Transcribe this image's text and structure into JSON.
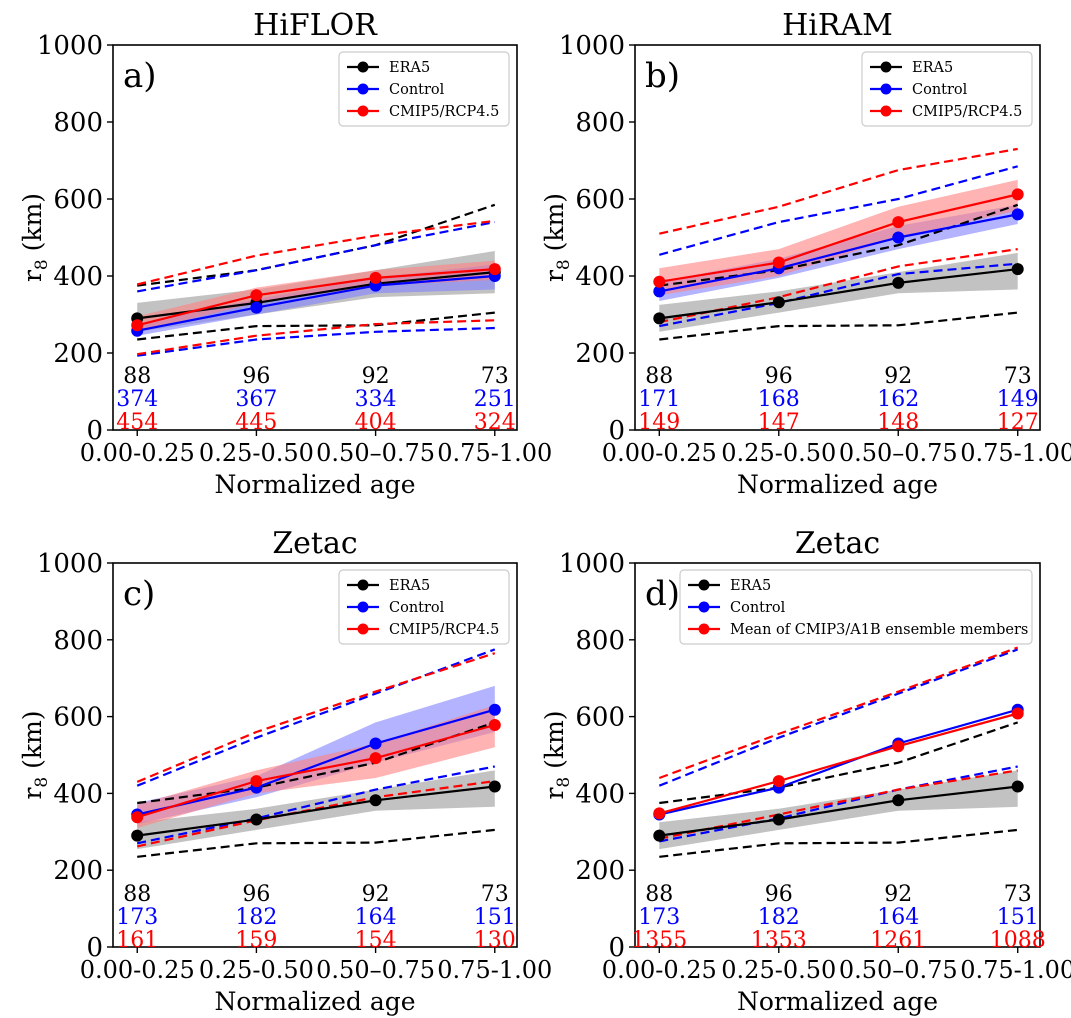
{
  "figure": {
    "panels": [
      "a",
      "b",
      "c",
      "d"
    ]
  },
  "colors": {
    "era5": "#000000",
    "control": "#0000ff",
    "cmip": "#ff0000",
    "era5_band": "#9a9a9a",
    "control_band": "#8080ff",
    "cmip_band": "#ff8080"
  },
  "chart_data": [
    {
      "type": "line",
      "panel_label": "a)",
      "title": "HiFLOR",
      "xlabel": "Normalized age",
      "ylabel_main": "r",
      "ylabel_sub": "8",
      "ylabel_unit": " (km)",
      "categories": [
        "0.00-0.25",
        "0.25-0.50",
        "0.50–0.75",
        "0.75-1.00"
      ],
      "ylim": [
        0,
        1000
      ],
      "yticks": [
        "0",
        "200",
        "400",
        "600",
        "800",
        "1000"
      ],
      "legend_position": "upper-right",
      "series": [
        {
          "name": "ERA5",
          "color_key": "era5",
          "mean": [
            290,
            330,
            380,
            410
          ],
          "band_low": [
            255,
            300,
            345,
            355
          ],
          "band_high": [
            330,
            365,
            415,
            465
          ],
          "dash_high": [
            375,
            415,
            480,
            585
          ],
          "dash_low": [
            235,
            270,
            272,
            305
          ]
        },
        {
          "name": "Control",
          "color_key": "control",
          "mean": [
            258,
            318,
            375,
            400
          ],
          "band_low": [
            245,
            300,
            355,
            365
          ],
          "band_high": [
            275,
            340,
            395,
            430
          ],
          "dash_high": [
            360,
            415,
            480,
            540
          ],
          "dash_low": [
            193,
            235,
            255,
            265
          ]
        },
        {
          "name": "CMIP5/RCP4.5",
          "color_key": "cmip",
          "mean": [
            272,
            350,
            395,
            418
          ],
          "band_low": [
            255,
            330,
            375,
            390
          ],
          "band_high": [
            295,
            370,
            415,
            440
          ],
          "dash_high": [
            378,
            453,
            505,
            543
          ],
          "dash_low": [
            197,
            245,
            275,
            285
          ]
        }
      ],
      "counts": [
        {
          "color_key": "era5",
          "values": [
            "88",
            "96",
            "92",
            "73"
          ]
        },
        {
          "color_key": "control",
          "values": [
            "374",
            "367",
            "334",
            "251"
          ]
        },
        {
          "color_key": "cmip",
          "values": [
            "454",
            "445",
            "404",
            "324"
          ]
        }
      ]
    },
    {
      "type": "line",
      "panel_label": "b)",
      "title": "HiRAM",
      "xlabel": "Normalized age",
      "ylabel_main": "r",
      "ylabel_sub": "8",
      "ylabel_unit": " (km)",
      "categories": [
        "0.00-0.25",
        "0.25-0.50",
        "0.50–0.75",
        "0.75-1.00"
      ],
      "ylim": [
        0,
        1000
      ],
      "yticks": [
        "0",
        "200",
        "400",
        "600",
        "800",
        "1000"
      ],
      "legend_position": "upper-right",
      "series": [
        {
          "name": "ERA5",
          "color_key": "era5",
          "mean": [
            290,
            332,
            382,
            418
          ],
          "band_low": [
            255,
            305,
            355,
            365
          ],
          "band_high": [
            325,
            360,
            410,
            460
          ],
          "dash_high": [
            375,
            415,
            480,
            585
          ],
          "dash_low": [
            235,
            270,
            272,
            305
          ]
        },
        {
          "name": "Control",
          "color_key": "control",
          "mean": [
            360,
            420,
            500,
            560
          ],
          "band_low": [
            335,
            395,
            470,
            535
          ],
          "band_high": [
            385,
            445,
            530,
            585
          ],
          "dash_high": [
            455,
            540,
            600,
            685
          ],
          "dash_low": [
            270,
            330,
            405,
            432
          ]
        },
        {
          "name": "CMIP5/RCP4.5",
          "color_key": "cmip",
          "mean": [
            385,
            435,
            540,
            612
          ],
          "band_low": [
            350,
            400,
            500,
            570
          ],
          "band_high": [
            420,
            470,
            580,
            650
          ],
          "dash_high": [
            510,
            580,
            675,
            730
          ],
          "dash_low": [
            280,
            345,
            425,
            470
          ]
        }
      ],
      "counts": [
        {
          "color_key": "era5",
          "values": [
            "88",
            "96",
            "92",
            "73"
          ]
        },
        {
          "color_key": "control",
          "values": [
            "171",
            "168",
            "162",
            "149"
          ]
        },
        {
          "color_key": "cmip",
          "values": [
            "149",
            "147",
            "148",
            "127"
          ]
        }
      ]
    },
    {
      "type": "line",
      "panel_label": "c)",
      "title": "Zetac",
      "xlabel": "Normalized age",
      "ylabel_main": "r",
      "ylabel_sub": "8",
      "ylabel_unit": " (km)",
      "categories": [
        "0.00-0.25",
        "0.25-0.50",
        "0.50–0.75",
        "0.75-1.00"
      ],
      "ylim": [
        0,
        1000
      ],
      "yticks": [
        "0",
        "200",
        "400",
        "600",
        "800",
        "1000"
      ],
      "legend_position": "upper-right",
      "series": [
        {
          "name": "ERA5",
          "color_key": "era5",
          "mean": [
            290,
            332,
            382,
            418
          ],
          "band_low": [
            255,
            305,
            355,
            365
          ],
          "band_high": [
            325,
            360,
            410,
            460
          ],
          "dash_high": [
            375,
            415,
            480,
            585
          ],
          "dash_low": [
            235,
            270,
            272,
            305
          ]
        },
        {
          "name": "Control",
          "color_key": "control",
          "mean": [
            345,
            415,
            530,
            618
          ],
          "band_low": [
            320,
            390,
            480,
            560
          ],
          "band_high": [
            375,
            445,
            585,
            680
          ],
          "dash_high": [
            420,
            545,
            660,
            775
          ],
          "dash_low": [
            270,
            335,
            410,
            470
          ]
        },
        {
          "name": "CMIP5/RCP4.5",
          "color_key": "cmip",
          "mean": [
            338,
            432,
            492,
            578
          ],
          "band_low": [
            310,
            400,
            440,
            520
          ],
          "band_high": [
            370,
            460,
            530,
            630
          ],
          "dash_high": [
            430,
            560,
            665,
            765
          ],
          "dash_low": [
            262,
            330,
            390,
            432
          ]
        }
      ],
      "counts": [
        {
          "color_key": "era5",
          "values": [
            "88",
            "96",
            "92",
            "73"
          ]
        },
        {
          "color_key": "control",
          "values": [
            "173",
            "182",
            "164",
            "151"
          ]
        },
        {
          "color_key": "cmip",
          "values": [
            "161",
            "159",
            "154",
            "130"
          ]
        }
      ]
    },
    {
      "type": "line",
      "panel_label": "d)",
      "title": "Zetac",
      "xlabel": "Normalized age",
      "ylabel_main": "r",
      "ylabel_sub": "8",
      "ylabel_unit": " (km)",
      "categories": [
        "0.00-0.25",
        "0.25-0.50",
        "0.50–0.75",
        "0.75-1.00"
      ],
      "ylim": [
        0,
        1000
      ],
      "yticks": [
        "0",
        "200",
        "400",
        "600",
        "800",
        "1000"
      ],
      "legend_position": "upper-right",
      "series": [
        {
          "name": "ERA5",
          "color_key": "era5",
          "mean": [
            290,
            332,
            382,
            418
          ],
          "band_low": [
            255,
            305,
            355,
            365
          ],
          "band_high": [
            325,
            360,
            410,
            460
          ],
          "dash_high": [
            375,
            415,
            480,
            585
          ],
          "dash_low": [
            235,
            270,
            272,
            305
          ]
        },
        {
          "name": "Control",
          "color_key": "control",
          "mean": [
            345,
            415,
            530,
            618
          ],
          "dash_high": [
            420,
            545,
            660,
            775
          ],
          "dash_low": [
            275,
            335,
            410,
            470
          ]
        },
        {
          "name": "Mean of CMIP3/A1B ensemble members",
          "color_key": "cmip",
          "mean": [
            348,
            432,
            523,
            608
          ],
          "dash_high": [
            440,
            555,
            665,
            780
          ],
          "dash_low": [
            282,
            345,
            410,
            460
          ]
        }
      ],
      "counts": [
        {
          "color_key": "era5",
          "values": [
            "88",
            "96",
            "92",
            "73"
          ]
        },
        {
          "color_key": "control",
          "values": [
            "173",
            "182",
            "164",
            "151"
          ]
        },
        {
          "color_key": "cmip",
          "values": [
            "1355",
            "1353",
            "1261",
            "1088"
          ]
        }
      ]
    }
  ]
}
